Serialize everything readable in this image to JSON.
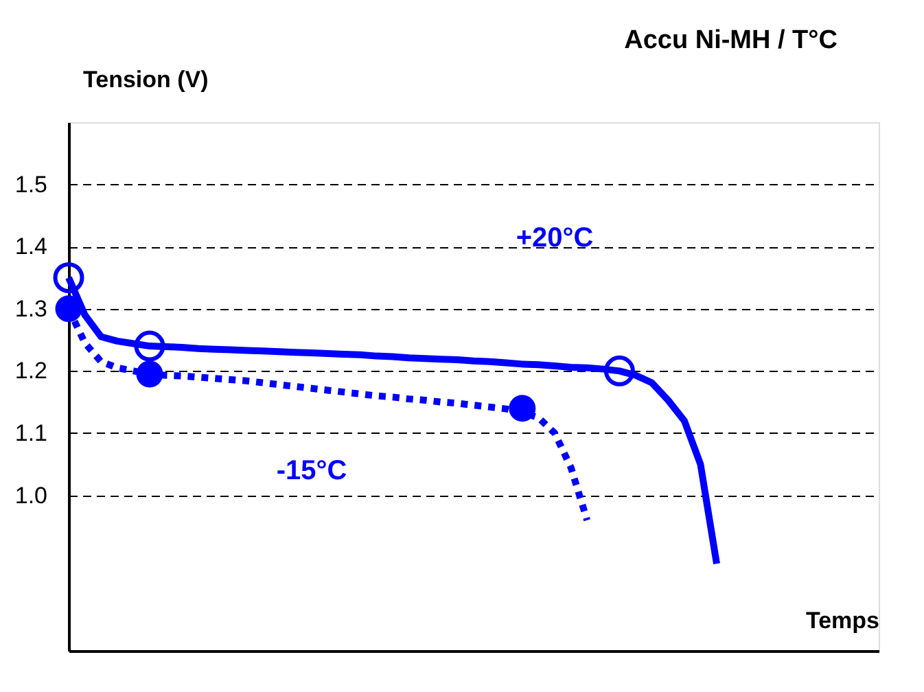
{
  "chart_data": {
    "type": "line",
    "title": "Accu Ni-MH / T°C",
    "ylabel": "Tension (V)",
    "xlabel": "Temps",
    "categories": [
      null,
      null,
      null,
      null,
      null,
      null,
      null,
      null,
      null,
      null,
      null,
      null,
      null,
      null,
      null,
      null,
      null,
      null,
      null,
      null,
      null,
      null,
      null,
      null,
      null,
      null,
      null,
      null,
      null,
      null,
      null,
      null,
      null,
      null,
      null,
      null,
      null,
      null,
      null,
      null,
      null,
      null,
      null,
      null,
      null,
      null,
      null,
      null,
      null,
      null,
      null
    ],
    "ylim": [
      0.75,
      1.6
    ],
    "yticks": [
      {
        "value": 1,
        "label": "1.0"
      },
      1.1,
      1.2,
      1.3,
      1.4,
      1.5
    ],
    "grid": "y",
    "tick_labels": "y",
    "series": [
      {
        "color": "#0000ff",
        "line_style": "solid",
        "values": [
          1.35,
          1.29,
          1.255,
          1.248,
          1.244,
          1.24,
          1.239,
          1.238,
          1.236,
          1.235,
          1.234,
          1.233,
          1.232,
          1.231,
          1.23,
          1.229,
          1.228,
          1.227,
          1.226,
          1.224,
          1.223,
          1.221,
          1.22,
          1.219,
          1.218,
          1.216,
          1.215,
          1.213,
          1.211,
          1.21,
          1.208,
          1.206,
          1.205,
          1.203,
          1.2,
          1.193,
          1.181,
          1.153,
          1.12,
          1.05,
          0.89,
          null,
          null,
          null,
          null,
          null,
          null,
          null,
          null,
          null,
          null
        ]
      },
      {
        "color": "#0000ff",
        "line_style": "dotted",
        "values": [
          1.3,
          1.245,
          1.215,
          1.205,
          1.2,
          1.195,
          1.193,
          1.192,
          1.19,
          1.188,
          1.186,
          1.184,
          1.181,
          1.178,
          1.175,
          1.172,
          1.169,
          1.166,
          1.163,
          1.16,
          1.158,
          1.155,
          1.153,
          1.15,
          1.148,
          1.145,
          1.142,
          1.139,
          1.133,
          1.125,
          1.1,
          1.045,
          0.96,
          null,
          null,
          null,
          null,
          null,
          null,
          null,
          null,
          null,
          null,
          null,
          null,
          null,
          null,
          null,
          null,
          null,
          null
        ]
      },
      {
        "type": "scatter",
        "color": "#0000ff",
        "marker": "circle",
        "values": [
          1.35,
          null,
          null,
          null,
          null,
          1.24,
          null,
          null,
          null,
          null,
          null,
          null,
          null,
          null,
          null,
          null,
          null,
          null,
          null,
          null,
          null,
          null,
          null,
          null,
          null,
          null,
          null,
          null,
          null,
          null,
          null,
          null,
          null,
          null,
          1.2,
          null,
          null,
          null,
          null,
          null,
          null,
          null,
          null,
          null,
          null,
          null,
          null,
          null,
          null,
          null,
          null
        ]
      },
      {
        "type": "scatter",
        "color": "#0000ff",
        "marker": "circle",
        "values": [
          1.3,
          null,
          null,
          null,
          null,
          1.195,
          null,
          null,
          null,
          null,
          null,
          null,
          null,
          null,
          null,
          null,
          null,
          null,
          null,
          null,
          null,
          null,
          null,
          null,
          null,
          null,
          null,
          null,
          1.14,
          null,
          null,
          null,
          null,
          null,
          null,
          null,
          null,
          null,
          null,
          null,
          null,
          null,
          null,
          null,
          null,
          null,
          null,
          null,
          null,
          null,
          null
        ]
      }
    ],
    "annotations": [
      "+20°C",
      "-15°C"
    ]
  }
}
